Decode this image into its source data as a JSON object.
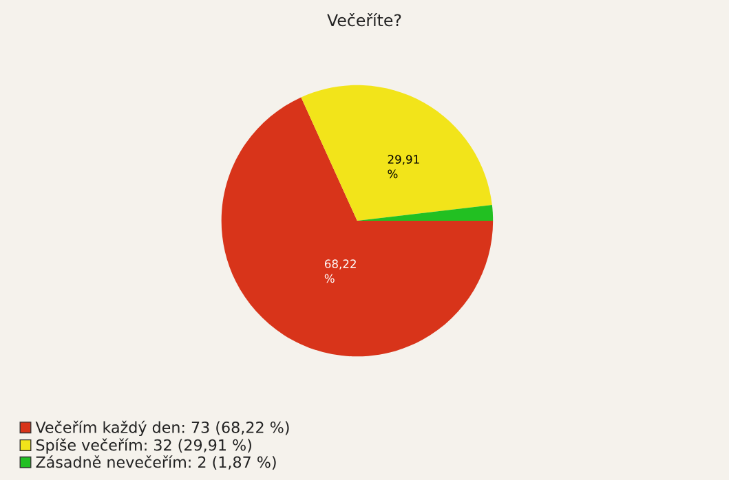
{
  "chart_data": {
    "type": "pie",
    "title": "Večeříte?",
    "categories": [
      "Večeřím každý den: 73 (68,22 %)",
      "Spíše večeřím: 32 (29,91 %)",
      "Zásadně nevečeřím: 2 (1,87 %)"
    ],
    "values": [
      68.22,
      29.91,
      1.87
    ],
    "colors": [
      "#d8341a",
      "#f2e41a",
      "#22c022"
    ],
    "value_labels": [
      "68,22\n%",
      "29,91\n%",
      null
    ],
    "legend": "bottom left"
  }
}
